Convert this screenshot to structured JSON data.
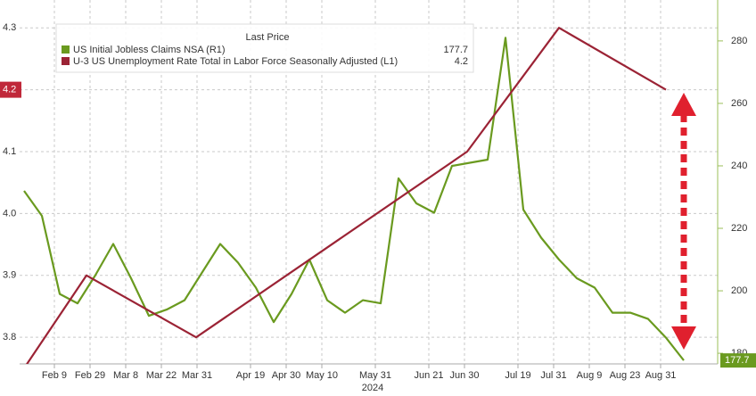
{
  "chart_data": {
    "type": "line",
    "legend_title": "Last Price",
    "categories": [
      null,
      null,
      "Feb 9",
      null,
      "Feb 29",
      null,
      "Mar 8",
      null,
      "Mar 22",
      null,
      "Mar 31",
      null,
      null,
      "Apr 19",
      null,
      "Apr 30",
      null,
      "May 10",
      null,
      null,
      "May 31",
      null,
      null,
      "Jun 21",
      null,
      "Jun 30",
      null,
      null,
      "Jul 19",
      null,
      "Jul 31",
      null,
      "Aug 9",
      null,
      "Aug 23",
      null,
      "Aug 31",
      null
    ],
    "x_sublabel": "2024",
    "series": [
      {
        "name": "US Initial Jobless Claims NSA  (R1)",
        "color": "#6a9a1f",
        "axis": "y2",
        "values": [
          232,
          224,
          199,
          196,
          205,
          215,
          204,
          192,
          194,
          197,
          206,
          215,
          209,
          201,
          190,
          199,
          210,
          197,
          193,
          197,
          196,
          236,
          228,
          225,
          240,
          241,
          242,
          281,
          226,
          217,
          210,
          204,
          201,
          193,
          193,
          191,
          185,
          177.7
        ]
      },
      {
        "name": "U-3 US Unemployment Rate Total in Labor Force Seasonally Adjusted  (L1)",
        "color": "#9b2335",
        "x": [
          0,
          3.5,
          9.65,
          24.85,
          30,
          36
        ],
        "values": [
          3.75,
          3.9,
          3.8,
          4.1,
          4.3,
          4.2
        ]
      }
    ],
    "ylim": [
      3.757,
      4.345
    ],
    "yticks": [
      3.8,
      3.9,
      {
        "value": 4,
        "label": "4.0"
      },
      4.1,
      4.2,
      4.3
    ],
    "y2lim": [
      176.6,
      293.1
    ],
    "y2ticks": [
      180,
      200,
      220,
      240,
      260,
      280
    ],
    "grid": true
  }
}
